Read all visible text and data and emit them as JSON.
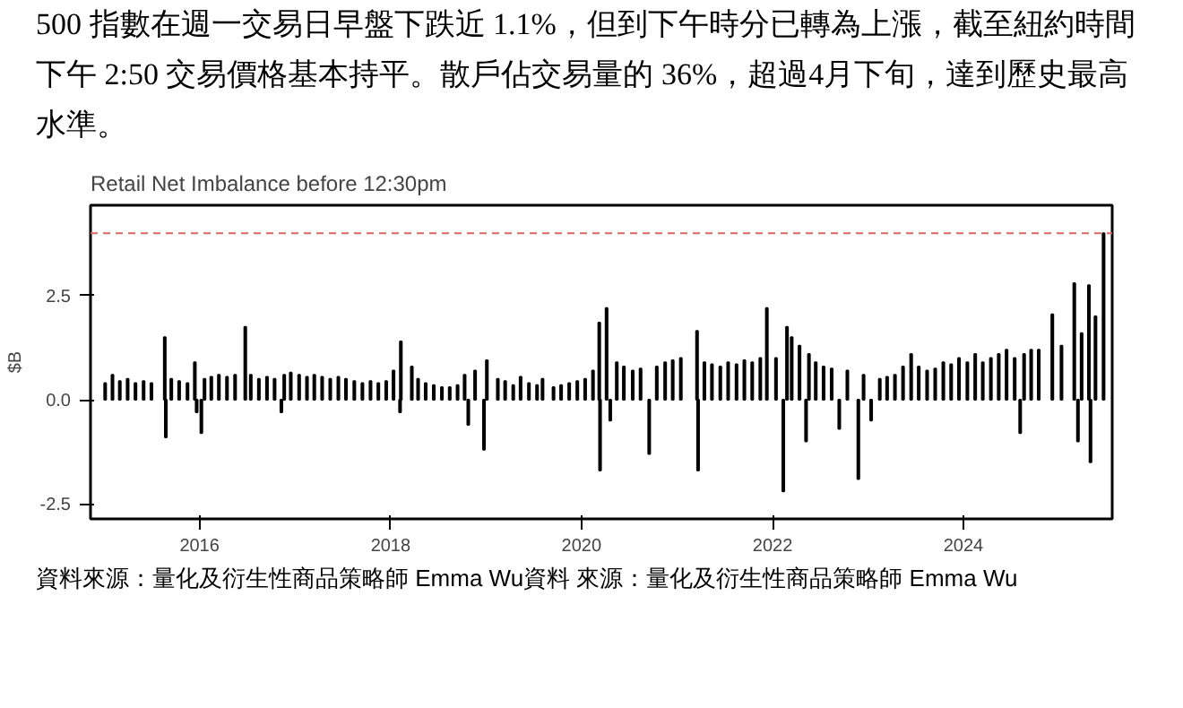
{
  "chart_data": {
    "type": "bar",
    "title": "Retail Net Imbalance before 12:30pm",
    "ylabel": "$B",
    "annotations": [
      "500 指數在週一交易日早盤下跌近 1.1%，但到下午時分已轉為上漲，截至紐約時間下午 2:50 交易價格基本持平。散戶佔交易量的 36%，超過4月下旬，達到歷史最高水準。",
      "資料來源：量化及衍生性商品策略師 Emma Wu資料 來源：量化及衍生性商品策略師 Emma Wu"
    ],
    "x": [
      "2015-01-05",
      "2015-02-02",
      "2015-03-02",
      "2015-04-01",
      "2015-05-01",
      "2015-06-01",
      "2015-07-01",
      "2015-08-21",
      "2015-08-25",
      "2015-09-15",
      "2015-10-15",
      "2015-11-16",
      "2015-12-14",
      "2015-12-21",
      "2016-01-08",
      "2016-01-20",
      "2016-02-15",
      "2016-03-15",
      "2016-04-15",
      "2016-05-16",
      "2016-06-24",
      "2016-07-15",
      "2016-08-15",
      "2016-09-15",
      "2016-10-14",
      "2016-11-09",
      "2016-11-20",
      "2016-12-15",
      "2017-01-16",
      "2017-02-15",
      "2017-03-15",
      "2017-04-14",
      "2017-05-15",
      "2017-06-15",
      "2017-07-14",
      "2017-08-15",
      "2017-09-15",
      "2017-10-16",
      "2017-11-15",
      "2017-12-15",
      "2018-01-12",
      "2018-02-06",
      "2018-02-09",
      "2018-03-23",
      "2018-04-16",
      "2018-05-15",
      "2018-06-15",
      "2018-07-16",
      "2018-08-15",
      "2018-09-14",
      "2018-10-11",
      "2018-10-25",
      "2018-11-20",
      "2018-12-24",
      "2019-01-04",
      "2019-02-15",
      "2019-03-15",
      "2019-04-15",
      "2019-05-13",
      "2019-06-14",
      "2019-07-15",
      "2019-08-05",
      "2019-09-16",
      "2019-10-15",
      "2019-11-15",
      "2019-12-16",
      "2020-01-15",
      "2020-02-14",
      "2020-03-09",
      "2020-03-12",
      "2020-04-06",
      "2020-04-20",
      "2020-05-15",
      "2020-06-11",
      "2020-07-15",
      "2020-08-14",
      "2020-09-16",
      "2020-10-15",
      "2020-11-16",
      "2020-12-15",
      "2021-01-15",
      "2021-03-18",
      "2021-03-22",
      "2021-04-15",
      "2021-05-14",
      "2021-06-15",
      "2021-07-15",
      "2021-08-16",
      "2021-09-15",
      "2021-10-15",
      "2021-11-15",
      "2021-12-10",
      "2022-01-14",
      "2022-02-11",
      "2022-02-25",
      "2022-03-15",
      "2022-04-14",
      "2022-05-09",
      "2022-05-20",
      "2022-06-15",
      "2022-07-15",
      "2022-08-15",
      "2022-09-13",
      "2022-10-14",
      "2022-11-25",
      "2022-12-15",
      "2023-01-13",
      "2023-02-15",
      "2023-03-15",
      "2023-04-14",
      "2023-05-15",
      "2023-06-15",
      "2023-07-14",
      "2023-08-15",
      "2023-09-15",
      "2023-10-16",
      "2023-11-15",
      "2023-12-15",
      "2024-01-16",
      "2024-02-15",
      "2024-03-15",
      "2024-04-15",
      "2024-05-15",
      "2024-06-14",
      "2024-07-15",
      "2024-08-05",
      "2024-08-20",
      "2024-09-16",
      "2024-10-15",
      "2024-12-06",
      "2025-01-10",
      "2025-02-28",
      "2025-03-14",
      "2025-03-28",
      "2025-04-25",
      "2025-05-01",
      "2025-05-20",
      "2025-06-20"
    ],
    "series": [
      {
        "color": "#000000",
        "values": [
          0.4,
          0.6,
          0.45,
          0.5,
          0.4,
          0.45,
          0.4,
          1.5,
          -0.9,
          0.5,
          0.45,
          0.4,
          0.9,
          -0.3,
          -0.8,
          0.5,
          0.55,
          0.6,
          0.55,
          0.6,
          1.75,
          0.6,
          0.5,
          0.55,
          0.5,
          -0.3,
          0.6,
          0.65,
          0.6,
          0.55,
          0.6,
          0.55,
          0.5,
          0.55,
          0.5,
          0.45,
          0.4,
          0.45,
          0.4,
          0.45,
          0.7,
          -0.3,
          1.4,
          0.8,
          0.5,
          0.4,
          0.35,
          0.3,
          0.3,
          0.35,
          0.6,
          -0.6,
          0.7,
          -1.2,
          0.95,
          0.5,
          0.45,
          0.35,
          0.55,
          0.4,
          0.35,
          0.5,
          0.3,
          0.35,
          0.4,
          0.45,
          0.5,
          0.7,
          1.85,
          -1.7,
          2.2,
          -0.5,
          0.9,
          0.8,
          0.7,
          0.75,
          -1.3,
          0.8,
          0.9,
          0.95,
          1.0,
          1.65,
          -1.7,
          0.9,
          0.85,
          0.8,
          0.9,
          0.85,
          0.95,
          0.9,
          1.0,
          2.2,
          1.0,
          -2.2,
          1.75,
          1.5,
          1.3,
          -1.0,
          1.1,
          0.9,
          0.8,
          0.75,
          -0.7,
          0.7,
          -1.9,
          0.6,
          -0.5,
          0.5,
          0.55,
          0.6,
          0.8,
          1.1,
          0.8,
          0.7,
          0.75,
          0.9,
          0.85,
          1.0,
          0.9,
          1.1,
          0.9,
          1.0,
          1.1,
          1.2,
          1.0,
          -0.8,
          1.1,
          1.2,
          1.2,
          2.05,
          1.3,
          2.8,
          -1.0,
          1.6,
          2.75,
          -1.5,
          2.0,
          4.0
        ]
      }
    ],
    "xlim": [
      "2014-11-10",
      "2025-07-23"
    ],
    "xticks": [
      "2016",
      "2018",
      "2020",
      "2022",
      "2024"
    ],
    "ylim": [
      -2.86,
      4.67
    ],
    "yticks": [
      {
        "value": -2.5,
        "label": "-2.5"
      },
      {
        "value": 0,
        "label": "0.0"
      },
      {
        "value": 2.5,
        "label": "2.5"
      }
    ],
    "ref_lines": [
      {
        "axis": "y",
        "value": 4.0,
        "color": "#e06666",
        "line_style": "dashed"
      }
    ]
  }
}
